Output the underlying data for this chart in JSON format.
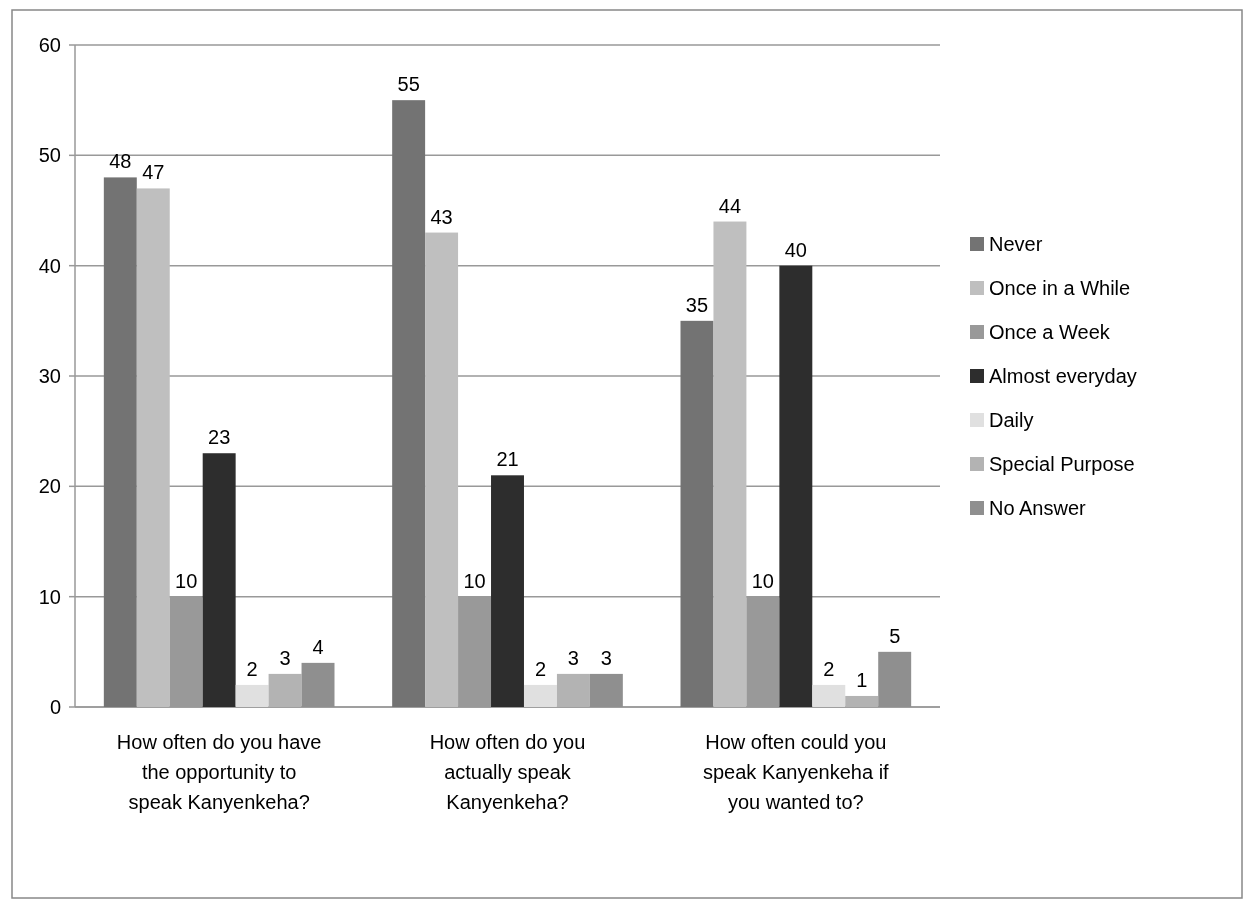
{
  "chart_data": {
    "type": "bar",
    "categories": [
      "How often do you have the opportunity to speak Kanyenkeha?",
      "How often do you actually speak Kanyenkeha?",
      "How often could you speak Kanyenkeha if you wanted to?"
    ],
    "series": [
      {
        "name": "Never",
        "color": "#737373",
        "values": [
          48,
          55,
          35
        ]
      },
      {
        "name": "Once in a While",
        "color": "#bfbfbf",
        "values": [
          47,
          43,
          44
        ]
      },
      {
        "name": "Once a Week",
        "color": "#999999",
        "values": [
          10,
          10,
          10
        ]
      },
      {
        "name": "Almost everyday",
        "color": "#2d2d2d",
        "values": [
          23,
          21,
          40
        ]
      },
      {
        "name": "Daily",
        "color": "#e0e0e0",
        "values": [
          2,
          2,
          2
        ]
      },
      {
        "name": "Special Purpose",
        "color": "#b3b3b3",
        "values": [
          3,
          3,
          1
        ]
      },
      {
        "name": "No Answer",
        "color": "#8f8f8f",
        "values": [
          4,
          3,
          5
        ]
      }
    ],
    "ylim": [
      0,
      60
    ],
    "yticks": [
      0,
      10,
      20,
      30,
      40,
      50,
      60
    ],
    "grid": "y",
    "legend": "right",
    "data_labels": true
  }
}
